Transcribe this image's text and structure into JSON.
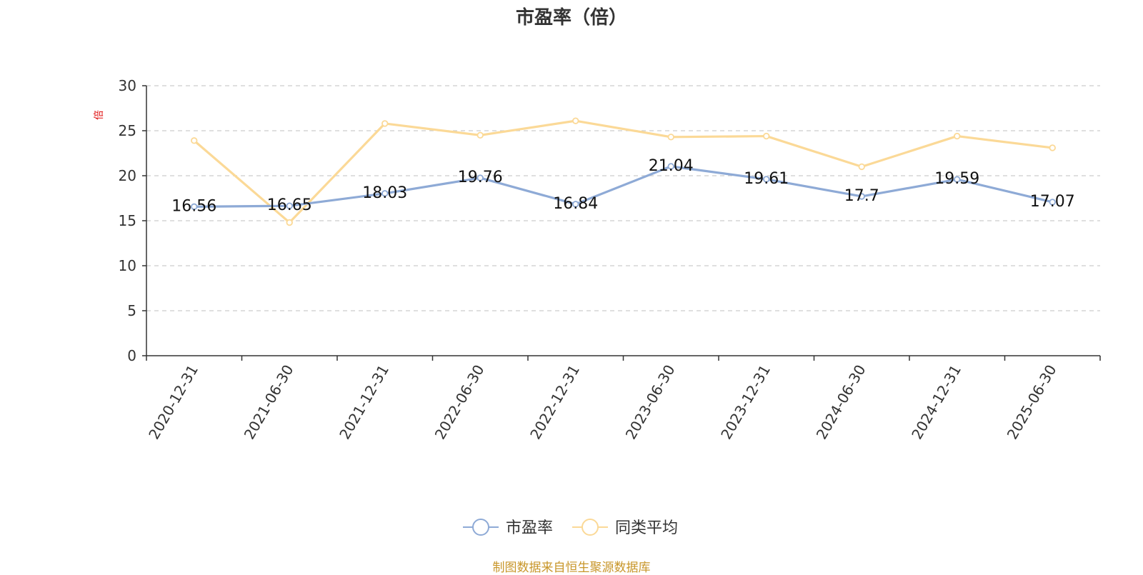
{
  "chart_data": {
    "type": "line",
    "title": "市盈率（倍）",
    "ylabel": "倍",
    "xlabel": "",
    "ylim": [
      0,
      30
    ],
    "yticks": [
      0,
      5,
      10,
      15,
      20,
      25,
      30
    ],
    "grid": true,
    "legend_position": "bottom-center",
    "categories": [
      "2020-12-31",
      "2021-06-30",
      "2021-12-31",
      "2022-06-30",
      "2022-12-31",
      "2023-06-30",
      "2023-12-31",
      "2024-06-30",
      "2024-12-31",
      "2025-06-30"
    ],
    "series": [
      {
        "name": "市盈率",
        "color": "#8eaad6",
        "values": [
          16.56,
          16.65,
          18.03,
          19.76,
          16.84,
          21.04,
          19.61,
          17.7,
          19.59,
          17.07
        ],
        "labels": [
          "16.56",
          "16.65",
          "18.03",
          "19.76",
          "16.84",
          "21.04",
          "19.61",
          "17.7",
          "19.59",
          "17.07"
        ]
      },
      {
        "name": "同类平均",
        "color": "#fbd997",
        "values": [
          23.9,
          14.8,
          25.8,
          24.5,
          26.1,
          24.3,
          24.4,
          21.0,
          24.4,
          23.1
        ]
      }
    ]
  },
  "footer": {
    "source": "制图数据来自恒生聚源数据库"
  }
}
